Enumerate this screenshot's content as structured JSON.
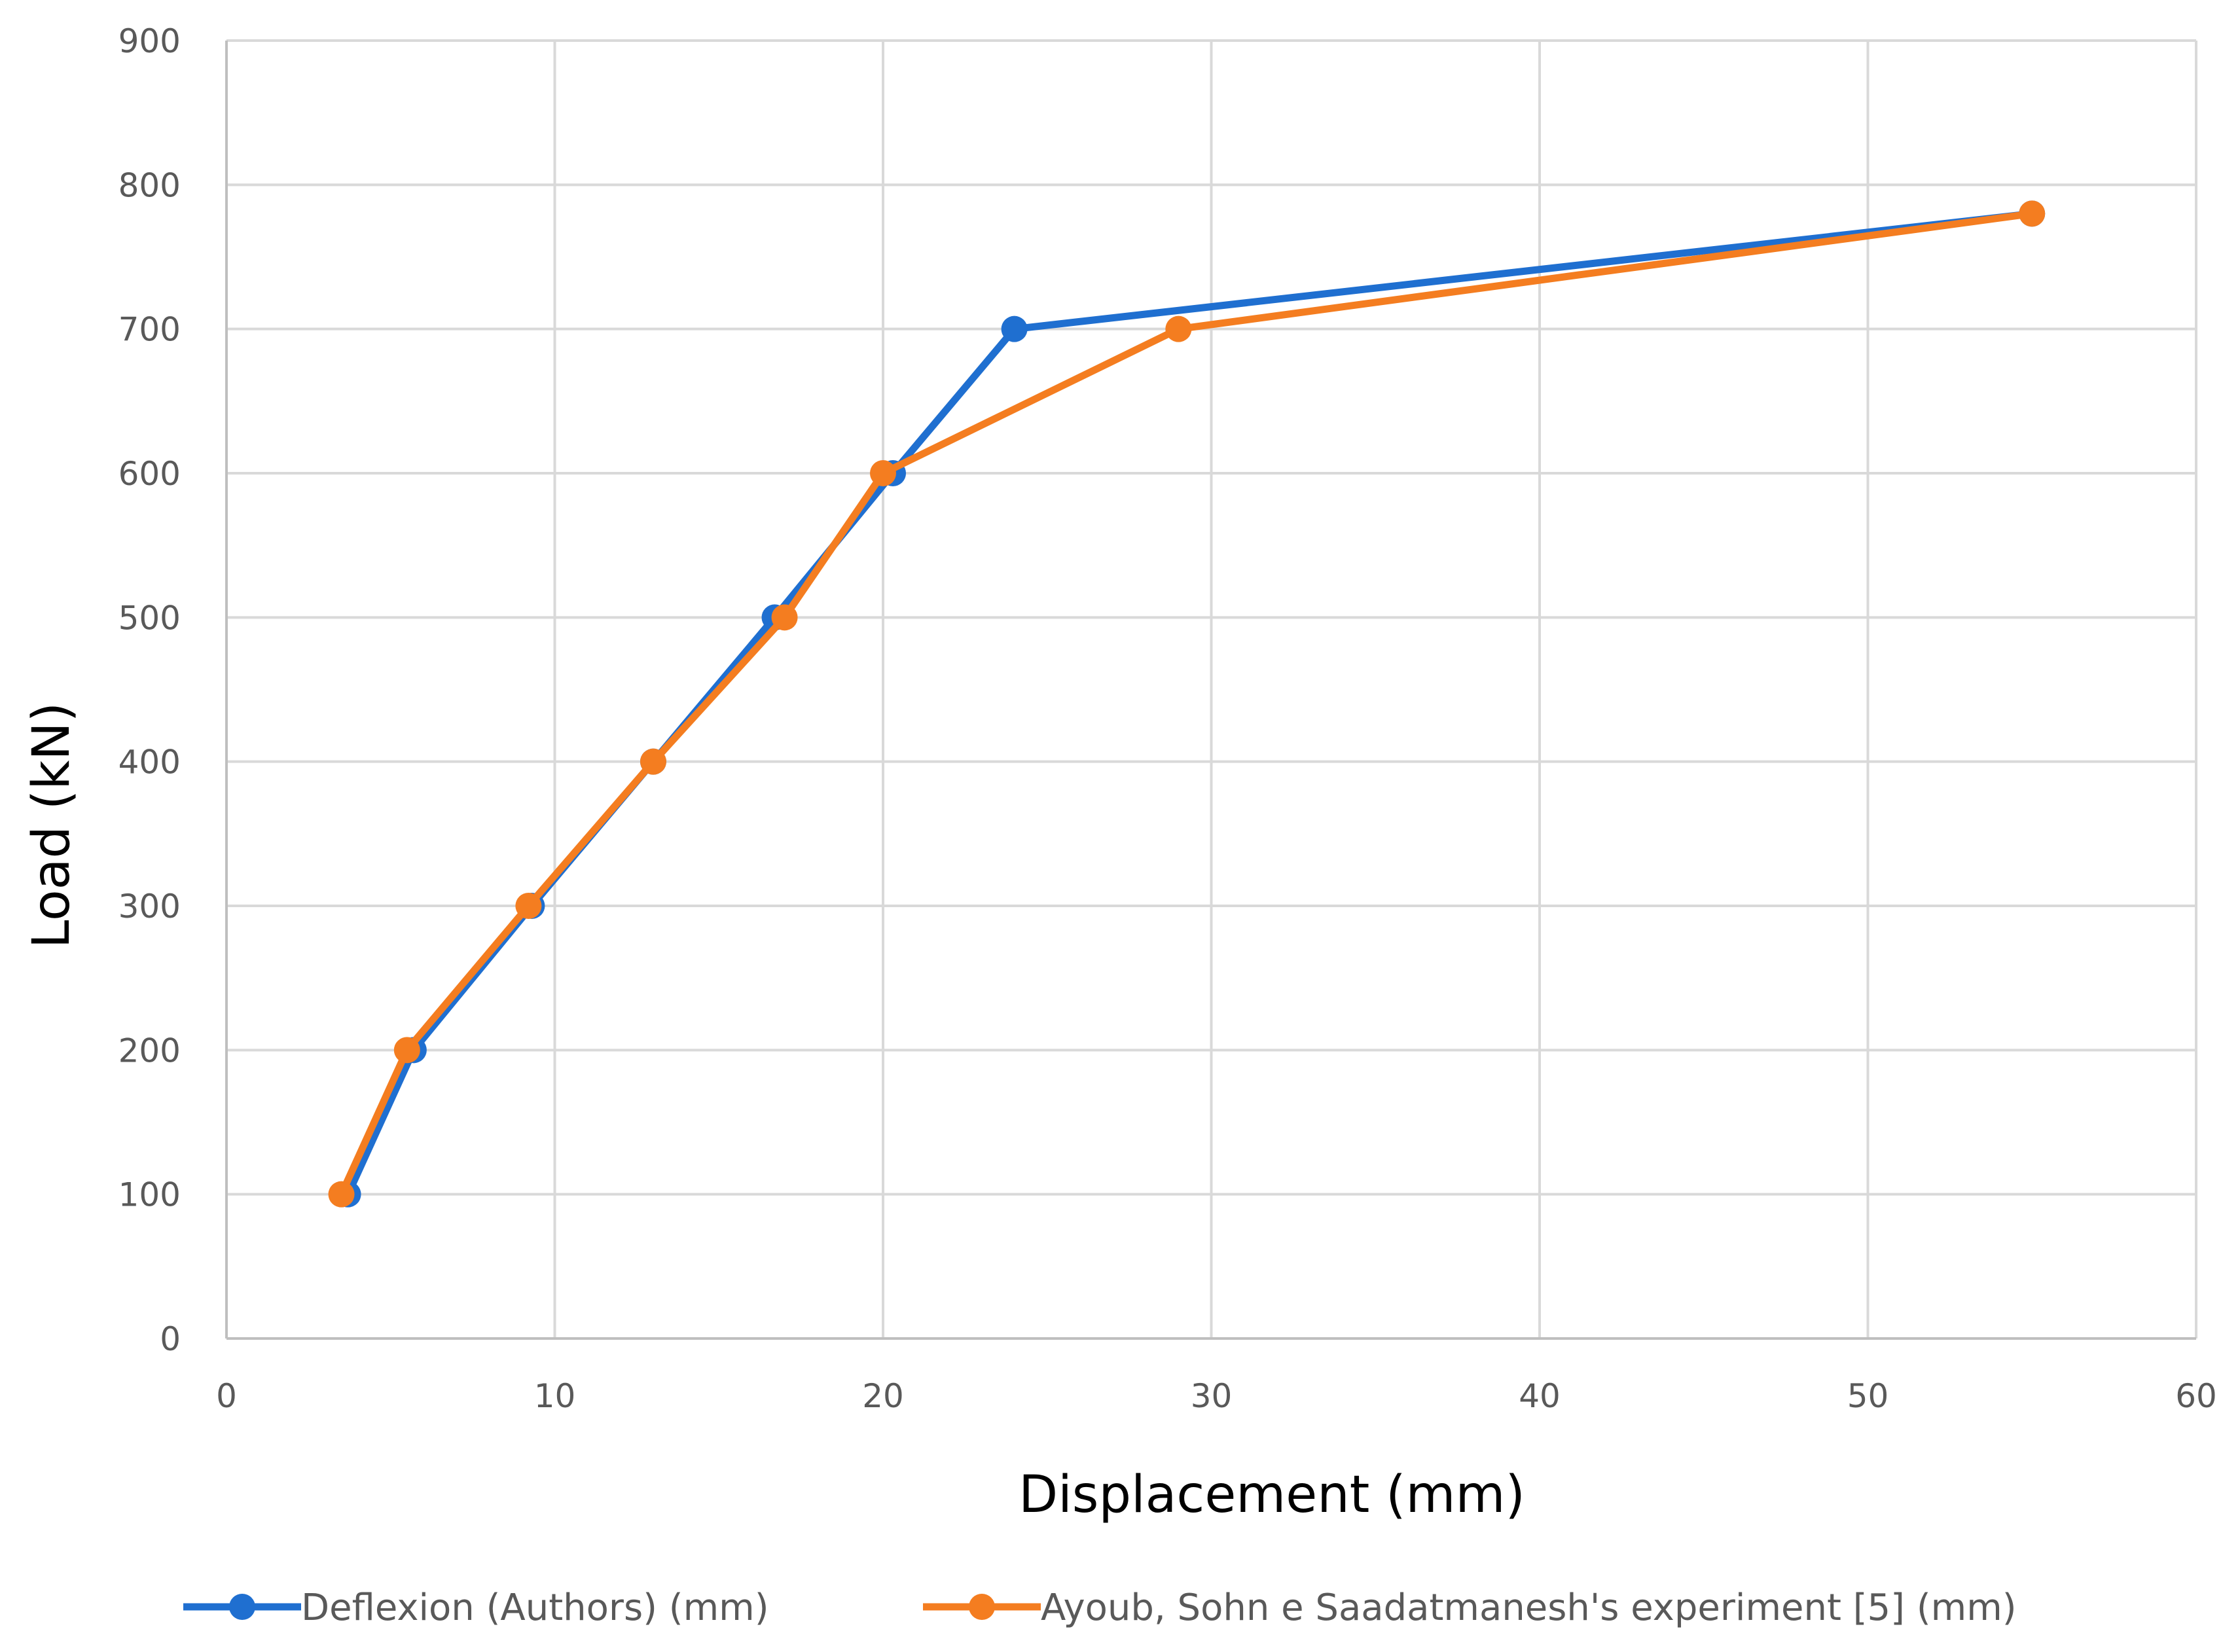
{
  "chart_data": {
    "type": "line",
    "title": "",
    "xlabel": "Displacement (mm)",
    "ylabel": "Load (kN)",
    "xlim": [
      0,
      60
    ],
    "ylim": [
      0,
      900
    ],
    "xticks": [
      0,
      10,
      20,
      30,
      40,
      50,
      60
    ],
    "yticks": [
      0,
      100,
      200,
      300,
      400,
      500,
      600,
      700,
      800,
      900
    ],
    "grid": true,
    "legend_position": "bottom",
    "series": [
      {
        "name": "Deflexion (Authors) (mm)",
        "color": "#1F6FD0",
        "x": [
          3.7,
          5.7,
          9.3,
          13.0,
          16.7,
          20.3,
          24.0,
          55.0
        ],
        "y": [
          100,
          200,
          300,
          400,
          500,
          600,
          700,
          780
        ]
      },
      {
        "name": "Ayoub, Sohn e Saadatmanesh's experiment [5] (mm)",
        "color": "#F47D20",
        "x": [
          3.5,
          5.5,
          9.2,
          13.0,
          17.0,
          20.0,
          29.0,
          55.0
        ],
        "y": [
          100,
          200,
          300,
          400,
          500,
          600,
          700,
          780
        ]
      }
    ]
  }
}
